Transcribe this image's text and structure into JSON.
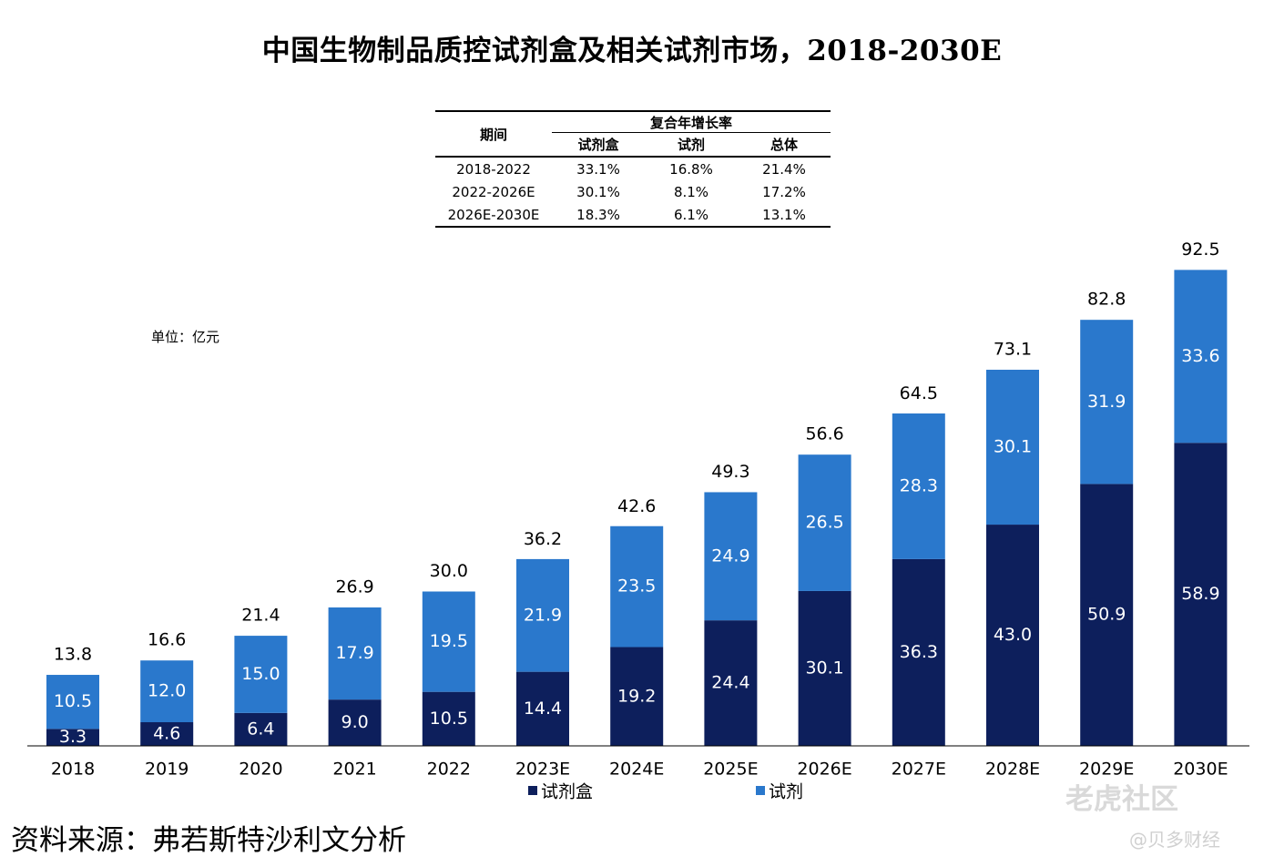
{
  "chart_data": {
    "type": "bar",
    "stacked": true,
    "title": "中国生物制品质控试剂盒及相关试剂市场，2018-2030E",
    "unit_label": "单位：亿元",
    "categories": [
      "2018",
      "2019",
      "2020",
      "2021",
      "2022",
      "2023E",
      "2024E",
      "2025E",
      "2026E",
      "2027E",
      "2028E",
      "2029E",
      "2030E"
    ],
    "series": [
      {
        "name": "试剂盒",
        "color": "#0d1f5c",
        "labels": [
          "3.3",
          "4.6",
          "6.4",
          "9.0",
          "10.5",
          "14.4",
          "19.2",
          "24.4",
          "30.1",
          "36.3",
          "43.0",
          "50.9",
          "58.9"
        ]
      },
      {
        "name": "试剂",
        "color": "#2a78cc",
        "labels": [
          "10.5",
          "12.0",
          "15.0",
          "17.9",
          "19.5",
          "21.9",
          "23.5",
          "24.9",
          "26.5",
          "28.3",
          "30.1",
          "31.9",
          "33.6"
        ]
      }
    ],
    "totals": [
      "13.8",
      "16.6",
      "21.4",
      "26.9",
      "30.0",
      "36.2",
      "42.6",
      "49.3",
      "56.6",
      "64.5",
      "73.1",
      "82.8",
      "92.5"
    ],
    "ylim": [
      0,
      100
    ],
    "legend_position": "bottom-center"
  },
  "cagr_table": {
    "period_header": "期间",
    "group_header": "复合年增长率",
    "col_headers": [
      "试剂盒",
      "试剂",
      "总体"
    ],
    "rows": [
      {
        "period": "2018-2022",
        "values": [
          "33.1%",
          "16.8%",
          "21.4%"
        ]
      },
      {
        "period": "2022-2026E",
        "values": [
          "30.1%",
          "8.1%",
          "17.2%"
        ]
      },
      {
        "period": "2026E-2030E",
        "values": [
          "18.3%",
          "6.1%",
          "13.1%"
        ]
      }
    ]
  },
  "source": "资料来源：弗若斯特沙利文分析",
  "watermark": {
    "main": "老虎社区",
    "sub": "@贝多财经"
  }
}
